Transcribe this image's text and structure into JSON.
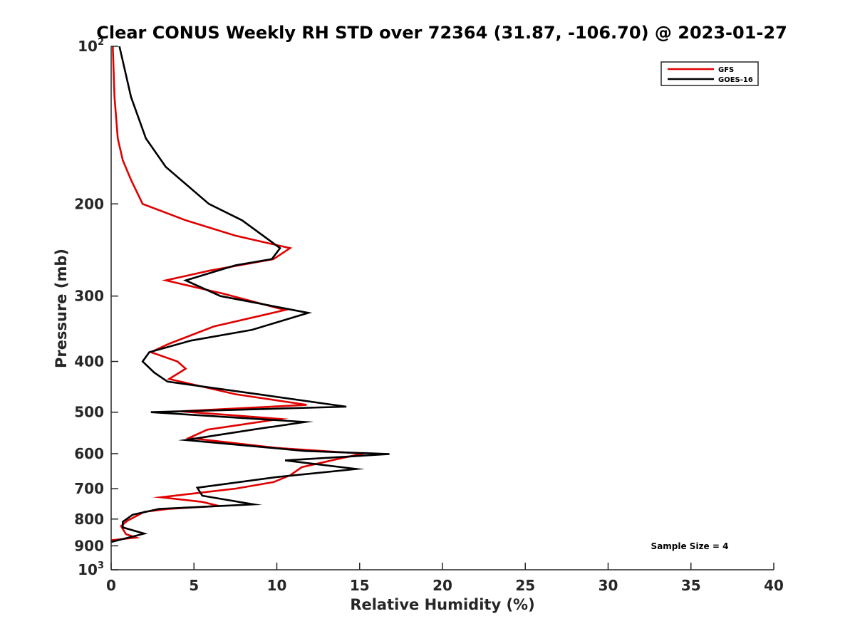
{
  "colors": {
    "gfs": "#e00000",
    "goes": "#000000",
    "axis": "#262626"
  },
  "chart_data": {
    "type": "line",
    "title": "Clear CONUS Weekly RH STD over 72364 (31.87, -106.70) @ 2023-01-27",
    "xlabel": "Relative Humidity (%)",
    "ylabel": "Pressure (mb)",
    "xlim": [
      0,
      40
    ],
    "ylim": [
      100,
      1000
    ],
    "yscale": "log",
    "y_reversed": true,
    "grid": false,
    "legend_position": "top-right",
    "x_ticks": [
      0,
      5,
      10,
      15,
      20,
      25,
      30,
      35,
      40
    ],
    "x_tick_labels": [
      "0",
      "5",
      "10",
      "15",
      "20",
      "25",
      "30",
      "35",
      "40"
    ],
    "y_ticks": [
      100,
      200,
      300,
      400,
      500,
      600,
      700,
      800,
      900,
      1000
    ],
    "y_tick_labels": [
      {
        "base": "10",
        "exp": "2"
      },
      {
        "base": "200"
      },
      {
        "base": "300"
      },
      {
        "base": "400"
      },
      {
        "base": "500"
      },
      {
        "base": "600"
      },
      {
        "base": "700"
      },
      {
        "base": "800"
      },
      {
        "base": "900"
      },
      {
        "base": "10",
        "exp": "3"
      }
    ],
    "annotation": "Sample Size = 4",
    "series": [
      {
        "name": "GFS",
        "color": "#e00000",
        "points": [
          [
            0.1,
            100
          ],
          [
            0.2,
            125
          ],
          [
            0.4,
            150
          ],
          [
            0.7,
            165
          ],
          [
            1.2,
            180
          ],
          [
            1.9,
            200
          ],
          [
            4.5,
            215
          ],
          [
            7.5,
            230
          ],
          [
            10.8,
            243
          ],
          [
            9.8,
            255
          ],
          [
            6.0,
            268
          ],
          [
            3.3,
            280
          ],
          [
            6.8,
            297
          ],
          [
            10.5,
            319
          ],
          [
            6.2,
            343
          ],
          [
            3.5,
            370
          ],
          [
            2.4,
            384
          ],
          [
            4.0,
            400
          ],
          [
            4.5,
            413
          ],
          [
            3.5,
            432
          ],
          [
            7.5,
            462
          ],
          [
            11.8,
            484
          ],
          [
            4.2,
            498
          ],
          [
            10.2,
            515
          ],
          [
            5.8,
            540
          ],
          [
            4.7,
            560
          ],
          [
            10.0,
            585
          ],
          [
            15.2,
            600
          ],
          [
            13.8,
            613
          ],
          [
            11.5,
            637
          ],
          [
            10.8,
            660
          ],
          [
            9.8,
            680
          ],
          [
            7.5,
            700
          ],
          [
            3.0,
            727
          ],
          [
            5.5,
            742
          ],
          [
            6.5,
            755
          ],
          [
            3.5,
            765
          ],
          [
            2.0,
            775
          ],
          [
            1.5,
            790
          ],
          [
            1.0,
            805
          ],
          [
            0.6,
            825
          ],
          [
            0.9,
            855
          ],
          [
            1.5,
            868
          ],
          [
            0.0,
            878
          ]
        ]
      },
      {
        "name": "GOES-16",
        "color": "#000000",
        "points": [
          [
            0.5,
            100
          ],
          [
            1.2,
            125
          ],
          [
            2.1,
            150
          ],
          [
            3.3,
            170
          ],
          [
            5.9,
            200
          ],
          [
            7.9,
            215
          ],
          [
            10.2,
            243
          ],
          [
            9.7,
            255
          ],
          [
            7.5,
            262
          ],
          [
            4.5,
            280
          ],
          [
            6.6,
            300
          ],
          [
            11.9,
            323
          ],
          [
            8.5,
            348
          ],
          [
            4.8,
            365
          ],
          [
            2.3,
            384
          ],
          [
            1.9,
            400
          ],
          [
            2.6,
            420
          ],
          [
            3.4,
            437
          ],
          [
            9.5,
            465
          ],
          [
            14.2,
            488
          ],
          [
            2.4,
            500
          ],
          [
            11.7,
            522
          ],
          [
            8.7,
            539
          ],
          [
            4.5,
            565
          ],
          [
            11.7,
            593
          ],
          [
            16.8,
            601
          ],
          [
            10.5,
            618
          ],
          [
            14.8,
            642
          ],
          [
            10.0,
            665
          ],
          [
            5.2,
            697
          ],
          [
            5.5,
            722
          ],
          [
            8.6,
            750
          ],
          [
            2.9,
            765
          ],
          [
            1.3,
            785
          ],
          [
            0.7,
            810
          ],
          [
            0.7,
            830
          ],
          [
            2.0,
            853
          ],
          [
            0.0,
            885
          ]
        ]
      }
    ]
  }
}
